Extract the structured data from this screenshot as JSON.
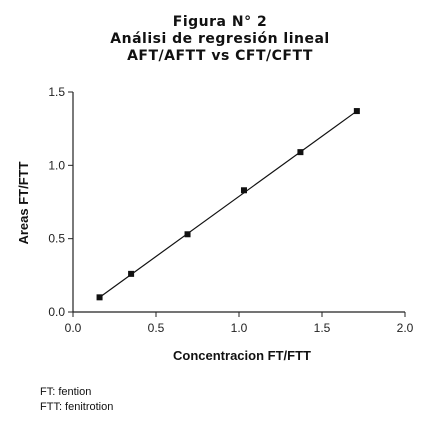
{
  "figure": {
    "label": "Figura N° 2",
    "subtitle": "Análisi de regresión lineal",
    "comparison": "AFT/AFTT vs CFT/CFTT"
  },
  "chart_data": {
    "type": "scatter",
    "xlabel": "Concentracion FT/FTT",
    "ylabel": "Areas FT/FTT",
    "xlim": [
      0.0,
      2.0
    ],
    "ylim": [
      0.0,
      1.5
    ],
    "x_ticks": [
      "0.0",
      "0.5",
      "1.0",
      "1.5",
      "2.0"
    ],
    "y_ticks": [
      "0.0",
      "0.5",
      "1.0",
      "1.5"
    ],
    "grid": false,
    "series": [
      {
        "x": [
          0.16,
          0.35,
          0.69,
          1.03,
          1.37,
          1.71
        ],
        "y": [
          0.1,
          0.26,
          0.53,
          0.83,
          1.09,
          1.37
        ],
        "marker": "square",
        "color": "#111111"
      }
    ],
    "regression_line": {
      "x": [
        0.16,
        1.71
      ],
      "y": [
        0.1,
        1.37
      ],
      "color": "#111111"
    }
  },
  "footnotes": [
    "FT: fention",
    "FTT: fenitrotion"
  ]
}
